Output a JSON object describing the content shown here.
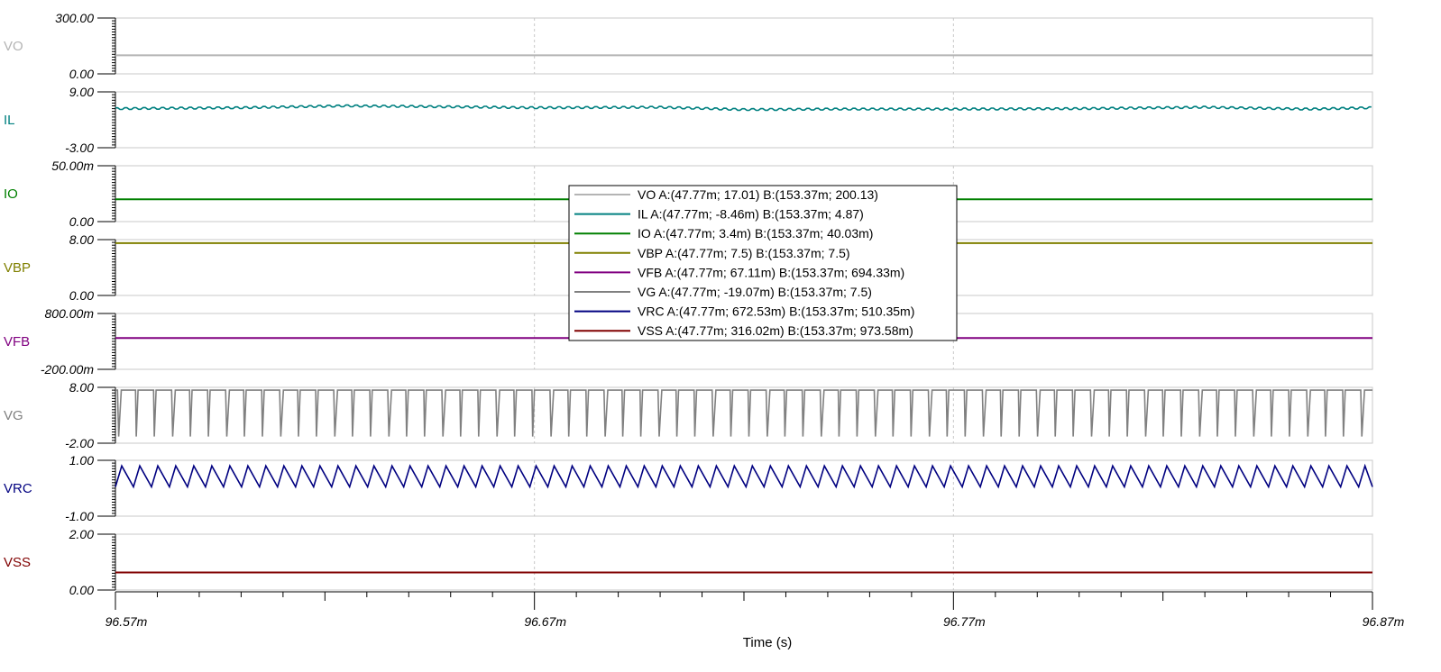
{
  "chart_data": {
    "type": "line",
    "xlabel": "Time (s)",
    "x_ticks": [
      "96.57m",
      "96.67m",
      "96.77m",
      "96.87m"
    ],
    "xlim": [
      96.57,
      96.87
    ],
    "x_unit": "ms",
    "vertical_grid": true,
    "legend_placement": "center",
    "channels": [
      {
        "name": "VO",
        "color": "#b4b4b4",
        "ylim_labels": [
          "300.00",
          "0.00"
        ],
        "ylim": [
          0,
          300
        ],
        "kind": "flat",
        "value": 100,
        "legend": "VO   A:(47.77m; 17.01) B:(153.37m; 200.13)"
      },
      {
        "name": "IL",
        "color": "#008080",
        "ylim_labels": [
          "9.00",
          "-3.00"
        ],
        "ylim": [
          -3,
          9
        ],
        "kind": "ripple",
        "trend": [
          [
            96.57,
            5.4
          ],
          [
            96.6,
            5.6
          ],
          [
            96.625,
            6.0
          ],
          [
            96.65,
            5.8
          ],
          [
            96.67,
            5.6
          ],
          [
            96.7,
            5.7
          ],
          [
            96.72,
            5.2
          ],
          [
            96.74,
            5.3
          ],
          [
            96.77,
            5.3
          ],
          [
            96.8,
            5.4
          ],
          [
            96.83,
            5.7
          ],
          [
            96.855,
            5.3
          ],
          [
            96.87,
            5.6
          ]
        ],
        "legend": "IL   A:(47.77m; -8.46m) B:(153.37m; 4.87)"
      },
      {
        "name": "IO",
        "color": "#008000",
        "ylim_labels": [
          "50.00m",
          "0.00"
        ],
        "ylim": [
          0,
          50
        ],
        "kind": "flat",
        "value": 20,
        "legend": "IO   A:(47.77m; 3.4m) B:(153.37m; 40.03m)"
      },
      {
        "name": "VBP",
        "color": "#808000",
        "ylim_labels": [
          "8.00",
          "0.00"
        ],
        "ylim": [
          0,
          8
        ],
        "kind": "flat",
        "value": 7.5,
        "legend": "VBP   A:(47.77m; 7.5) B:(153.37m; 7.5)"
      },
      {
        "name": "VFB",
        "color": "#800080",
        "ylim_labels": [
          "800.00m",
          "-200.00m"
        ],
        "ylim": [
          -200,
          800
        ],
        "kind": "flat",
        "value": 360,
        "legend": "VFB   A:(47.77m; 67.11m) B:(153.37m; 694.33m)"
      },
      {
        "name": "VG",
        "color": "#808080",
        "ylim_labels": [
          "8.00",
          "-2.00"
        ],
        "ylim": [
          -2,
          8
        ],
        "kind": "pulse",
        "high": 7.5,
        "low": -0.8,
        "period": 0.0043,
        "legend": "VG   A:(47.77m; -19.07m) B:(153.37m; 7.5)"
      },
      {
        "name": "VRC",
        "color": "#000080",
        "ylim_labels": [
          "1.00",
          "-1.00"
        ],
        "ylim": [
          -1,
          1
        ],
        "kind": "saw",
        "high": 0.8,
        "low": 0.05,
        "period": 0.0043,
        "legend": "VRC   A:(47.77m; 672.53m) B:(153.37m; 510.35m)"
      },
      {
        "name": "VSS",
        "color": "#800000",
        "ylim_labels": [
          "2.00",
          "0.00"
        ],
        "ylim": [
          0,
          2
        ],
        "kind": "flat",
        "value": 0.63,
        "legend": "VSS   A:(47.77m; 316.02m) B:(153.37m; 973.58m)"
      }
    ]
  }
}
